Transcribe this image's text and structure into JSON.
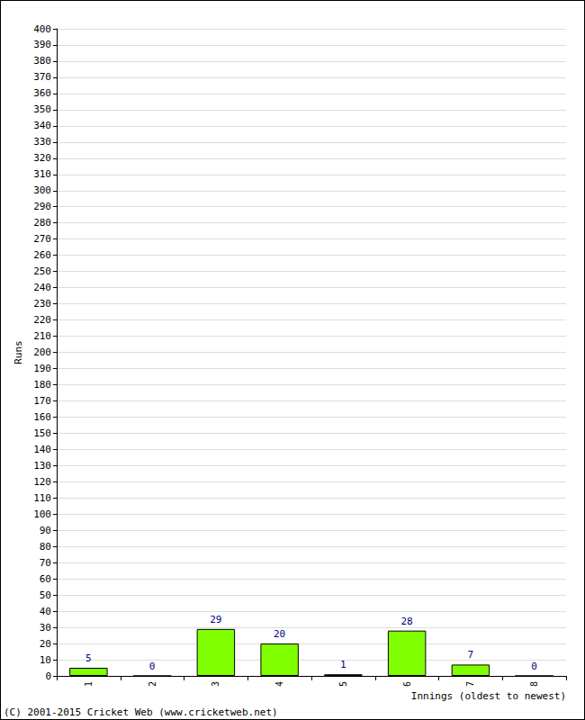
{
  "chart_data": {
    "type": "bar",
    "x_label": "Innings (oldest to newest)",
    "y_label": "Runs",
    "annotations": [
      "(C) 2001-2015 Cricket Web (www.cricketweb.net)"
    ],
    "categories": [
      "1",
      "2",
      "3",
      "4",
      "5",
      "6",
      "7",
      "8"
    ],
    "values": [
      5,
      0,
      29,
      20,
      1,
      28,
      7,
      0
    ],
    "color": "#80ff00",
    "ylim": [
      0,
      400
    ],
    "yticks": [
      0,
      10,
      20,
      30,
      40,
      50,
      60,
      70,
      80,
      90,
      100,
      110,
      120,
      130,
      140,
      150,
      160,
      170,
      180,
      190,
      200,
      210,
      220,
      230,
      240,
      250,
      260,
      270,
      280,
      290,
      300,
      310,
      320,
      330,
      340,
      350,
      360,
      370,
      380,
      390,
      400
    ],
    "grid": true,
    "data_labels": true
  }
}
